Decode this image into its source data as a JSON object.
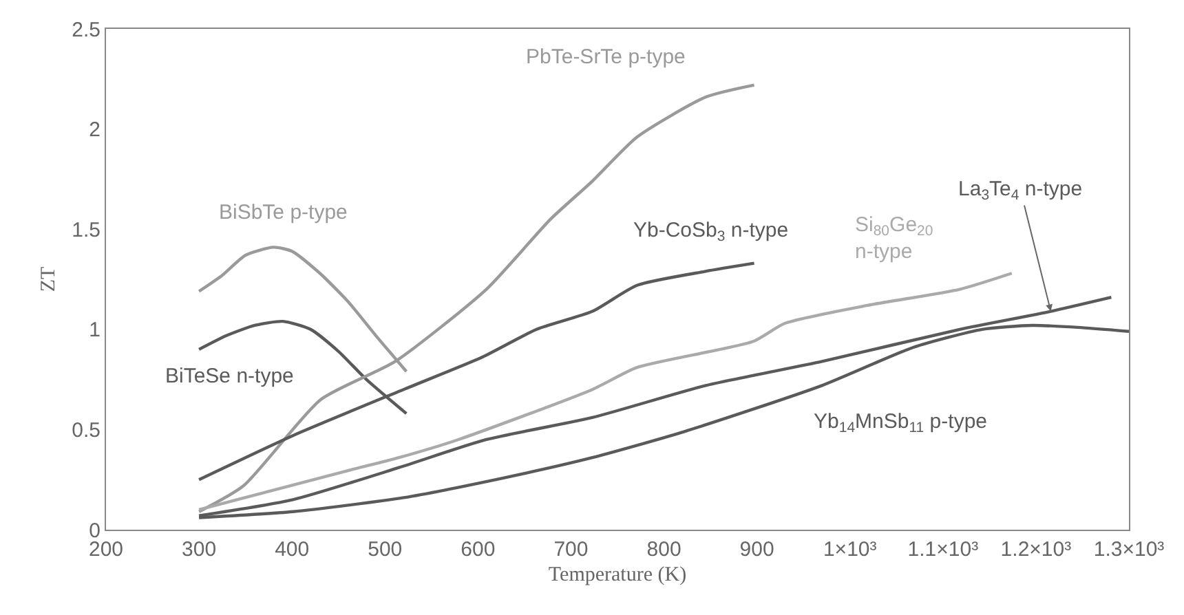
{
  "chart_data": {
    "type": "line",
    "xlabel": "Temperature (K)",
    "ylabel": "ZT",
    "xlim": [
      200,
      1300
    ],
    "xticks": [
      200,
      300,
      400,
      500,
      600,
      700,
      800,
      900,
      {
        "value": 1000,
        "label": "1×10³"
      },
      {
        "value": 1100,
        "label": "1.1×10³"
      },
      {
        "value": 1200,
        "label": "1.2×10³"
      },
      {
        "value": 1300,
        "label": "1.3×10³"
      }
    ],
    "ylim": [
      0,
      2.5
    ],
    "yticks": [
      0,
      0.5,
      1,
      1.5,
      2,
      2.5
    ],
    "grid": false,
    "legend": false,
    "marker": "none",
    "line_style": "solid",
    "series": [
      {
        "name": "BiSbTe p-type",
        "color": "#9a9a9a",
        "x": [
          300,
          325,
          350,
          380,
          400,
          430,
          460,
          490,
          523
        ],
        "values": [
          1.19,
          1.27,
          1.37,
          1.41,
          1.39,
          1.28,
          1.14,
          0.97,
          0.79
        ]
      },
      {
        "name": "BiTeSe n-type",
        "color": "#5a5a5a",
        "x": [
          300,
          330,
          360,
          390,
          420,
          450,
          480,
          523
        ],
        "values": [
          0.9,
          0.97,
          1.02,
          1.04,
          1.0,
          0.89,
          0.75,
          0.58
        ]
      },
      {
        "name": "PbTe-SrTe p-type",
        "color": "#9a9a9a",
        "x": [
          300,
          348,
          431,
          511,
          609,
          678,
          723,
          771,
          845,
          897
        ],
        "values": [
          0.09,
          0.22,
          0.65,
          0.84,
          1.2,
          1.55,
          1.74,
          1.96,
          2.16,
          2.22
        ]
      },
      {
        "name": "Yb-CoSb$_{3}$ n-type",
        "color": "#5a5a5a",
        "x": [
          300,
          401,
          520,
          604,
          663,
          723,
          771,
          845,
          897
        ],
        "values": [
          0.25,
          0.47,
          0.7,
          0.86,
          1.0,
          1.09,
          1.22,
          1.29,
          1.33
        ]
      },
      {
        "name": "Si$_{80}$Ge$_{20}$\nn-type",
        "color": "#aaaaaa",
        "x": [
          300,
          456,
          515,
          579,
          723,
          771,
          896,
          930,
          1019,
          1118,
          1174
        ],
        "values": [
          0.1,
          0.29,
          0.36,
          0.45,
          0.7,
          0.81,
          0.94,
          1.03,
          1.12,
          1.2,
          1.28
        ]
      },
      {
        "name": "La$_{3}$Te$_{4}$ n-type",
        "color": "#5a5a5a",
        "x": [
          300,
          401,
          515,
          609,
          723,
          845,
          970,
          1118,
          1216,
          1281
        ],
        "values": [
          0.07,
          0.15,
          0.31,
          0.45,
          0.56,
          0.72,
          0.84,
          1.0,
          1.09,
          1.16
        ]
      },
      {
        "name": "Yb$_{14}$MnSb$_{11}$ p-type",
        "color": "#5a5a5a",
        "x": [
          300,
          401,
          520,
          629,
          723,
          822,
          970,
          1068,
          1142,
          1196,
          1245,
          1300
        ],
        "values": [
          0.06,
          0.09,
          0.16,
          0.26,
          0.36,
          0.49,
          0.72,
          0.91,
          1.0,
          1.02,
          1.01,
          0.99
        ]
      }
    ]
  }
}
